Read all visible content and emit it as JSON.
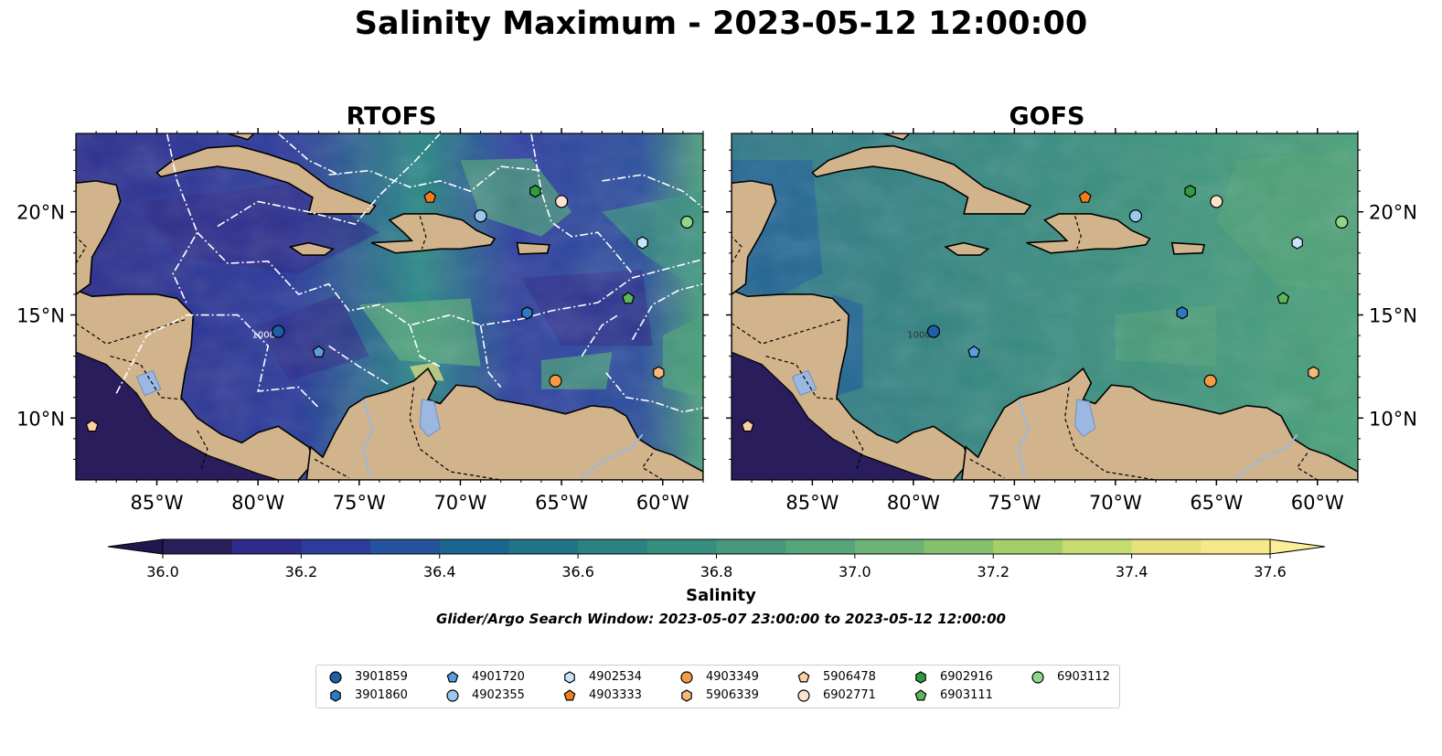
{
  "title": "Salinity Maximum - 2023-05-12 12:00:00",
  "panels": [
    {
      "title": "RTOFS",
      "model": "rtofs"
    },
    {
      "title": "GOFS",
      "model": "gofs"
    }
  ],
  "map": {
    "lon_range": [
      -89,
      -58
    ],
    "lat_range": [
      7,
      23.8
    ],
    "x_ticks": [
      "85°W",
      "80°W",
      "75°W",
      "70°W",
      "65°W",
      "60°W"
    ],
    "y_ticks": [
      "20°N",
      "15°N",
      "10°N"
    ],
    "land_color": "#d2b48c",
    "contour_label": "1000"
  },
  "colorbar": {
    "label": "Salinity",
    "ticks": [
      "36.0",
      "36.2",
      "36.4",
      "36.6",
      "36.8",
      "37.0",
      "37.2",
      "37.4",
      "37.6"
    ],
    "colors": [
      "#2a1d5c",
      "#2e2b8c",
      "#2c3c9a",
      "#24529c",
      "#1c6590",
      "#1f7488",
      "#2a8283",
      "#368f7e",
      "#45987b",
      "#56a479",
      "#6cb276",
      "#86c06f",
      "#a6cf69",
      "#c6dc70",
      "#e6e17a",
      "#f7e88b"
    ]
  },
  "search_window": "Glider/Argo Search Window: 2023-05-07 23:00:00 to 2023-05-12 12:00:00",
  "floats": [
    {
      "id": "3901859",
      "marker": "circle",
      "color": "#1f5fa8",
      "lon": -79.0,
      "lat": 14.2
    },
    {
      "id": "3901860",
      "marker": "hexagon",
      "color": "#2d7bc4",
      "lon": -66.7,
      "lat": 15.1
    },
    {
      "id": "4901720",
      "marker": "pentagon",
      "color": "#5a9ee0",
      "lon": -77.0,
      "lat": 13.2
    },
    {
      "id": "4902355",
      "marker": "circle",
      "color": "#9ac8f0",
      "lon": -69.0,
      "lat": 19.8
    },
    {
      "id": "4902534",
      "marker": "hexagon",
      "color": "#c9e6f8",
      "lon": -61.0,
      "lat": 18.5
    },
    {
      "id": "4903333",
      "marker": "pentagon",
      "color": "#f07d1e",
      "lon": -71.5,
      "lat": 20.7
    },
    {
      "id": "4903349",
      "marker": "circle",
      "color": "#f59b45",
      "lon": -65.3,
      "lat": 11.8
    },
    {
      "id": "5906339",
      "marker": "hexagon",
      "color": "#f8b877",
      "lon": -60.2,
      "lat": 12.2
    },
    {
      "id": "5906478",
      "marker": "pentagon",
      "color": "#fbd0a2",
      "lon": -88.2,
      "lat": 9.6
    },
    {
      "id": "6902771",
      "marker": "circle",
      "color": "#fde3cf",
      "lon": -65.0,
      "lat": 20.5
    },
    {
      "id": "6902916",
      "marker": "hexagon",
      "color": "#2e9e3a",
      "lon": -66.3,
      "lat": 21.0
    },
    {
      "id": "6903111",
      "marker": "pentagon",
      "color": "#5bb85a",
      "lon": -61.7,
      "lat": 15.8
    },
    {
      "id": "6903112",
      "marker": "circle",
      "color": "#8fd68b",
      "lon": -58.8,
      "lat": 19.5
    }
  ]
}
